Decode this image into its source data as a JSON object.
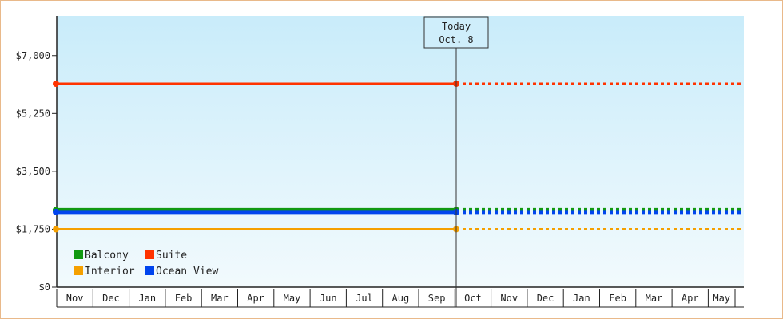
{
  "chart_data": {
    "type": "line",
    "y_ticks": [
      {
        "value": 0,
        "label": "$0"
      },
      {
        "value": 1750,
        "label": "$1,750"
      },
      {
        "value": 3500,
        "label": "$3,500"
      },
      {
        "value": 5250,
        "label": "$5,250"
      },
      {
        "value": 7000,
        "label": "$7,000"
      }
    ],
    "ylim": [
      0,
      8200
    ],
    "months": [
      "Nov",
      "Dec",
      "Jan",
      "Feb",
      "Mar",
      "Apr",
      "May",
      "Jun",
      "Jul",
      "Aug",
      "Sep",
      "Oct",
      "Nov",
      "Dec",
      "Jan",
      "Feb",
      "Mar",
      "Apr",
      "May"
    ],
    "today": {
      "line1": "Today",
      "line2": "Oct. 8",
      "month_index": 11
    },
    "series": [
      {
        "name": "Suite",
        "color": "#ff3300",
        "value": 6150,
        "dash": "4,4",
        "width": 3
      },
      {
        "name": "Balcony",
        "color": "#119911",
        "value": 2330,
        "dash": "4,4",
        "width": 5
      },
      {
        "name": "Ocean View",
        "color": "#0044ee",
        "value": 2270,
        "dash": "4,4",
        "width": 5
      },
      {
        "name": "Interior",
        "color": "#f5a000",
        "value": 1750,
        "dash": "4,4",
        "width": 3
      }
    ],
    "legend": [
      {
        "name": "Balcony",
        "color": "#119911"
      },
      {
        "name": "Suite",
        "color": "#ff3300"
      },
      {
        "name": "Interior",
        "color": "#f5a000"
      },
      {
        "name": "Ocean View",
        "color": "#0044ee"
      }
    ],
    "colors": {
      "plot_top": "#c9ecfa",
      "plot_bottom": "#f2fafd",
      "frame": "#e9b98a"
    }
  }
}
